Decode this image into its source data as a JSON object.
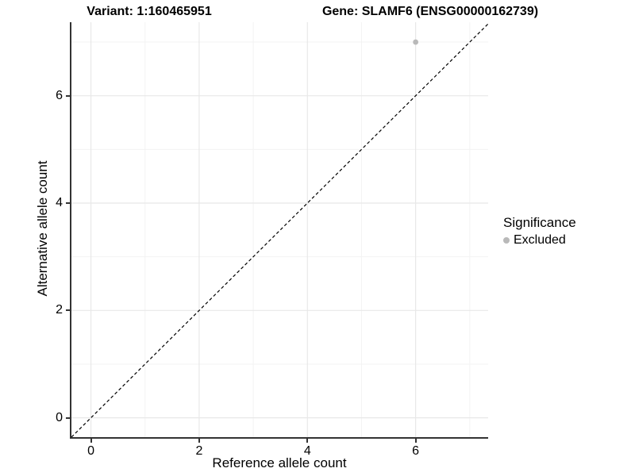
{
  "titles": {
    "variant": "Variant: 1:160465951",
    "gene": "Gene: SLAMF6 (ENSG00000162739)"
  },
  "chart_data": {
    "type": "scatter",
    "title_left": "Variant: 1:160465951",
    "title_right": "Gene: SLAMF6 (ENSG00000162739)",
    "xlabel": "Reference allele count",
    "ylabel": "Alternative allele count",
    "xlim": [
      -0.36,
      7.34
    ],
    "ylim": [
      -0.36,
      7.37
    ],
    "x_major_ticks": [
      0,
      2,
      4,
      6
    ],
    "y_major_ticks": [
      0,
      2,
      4,
      6
    ],
    "x_minor_ticks": [
      1,
      3,
      5,
      7
    ],
    "y_minor_ticks": [
      1,
      3,
      5,
      7
    ],
    "grid": true,
    "points": [
      {
        "x": 6,
        "y": 7,
        "series": "Excluded"
      }
    ],
    "point_radius": 3.4,
    "reference_line": {
      "type": "identity",
      "slope": 1,
      "intercept": 0,
      "style": "dashed"
    },
    "legend": {
      "title": "Significance",
      "position": "right",
      "entries": [
        {
          "label": "Excluded",
          "color": "#b9b9b9"
        }
      ]
    },
    "colors": {
      "point": "#b9b9b9",
      "grid_major": "#e8e8e8",
      "grid_minor": "#f3f3f3",
      "axis_line": "#333333",
      "reference_line": "#000000",
      "text": "#000000",
      "background": "#ffffff"
    }
  }
}
